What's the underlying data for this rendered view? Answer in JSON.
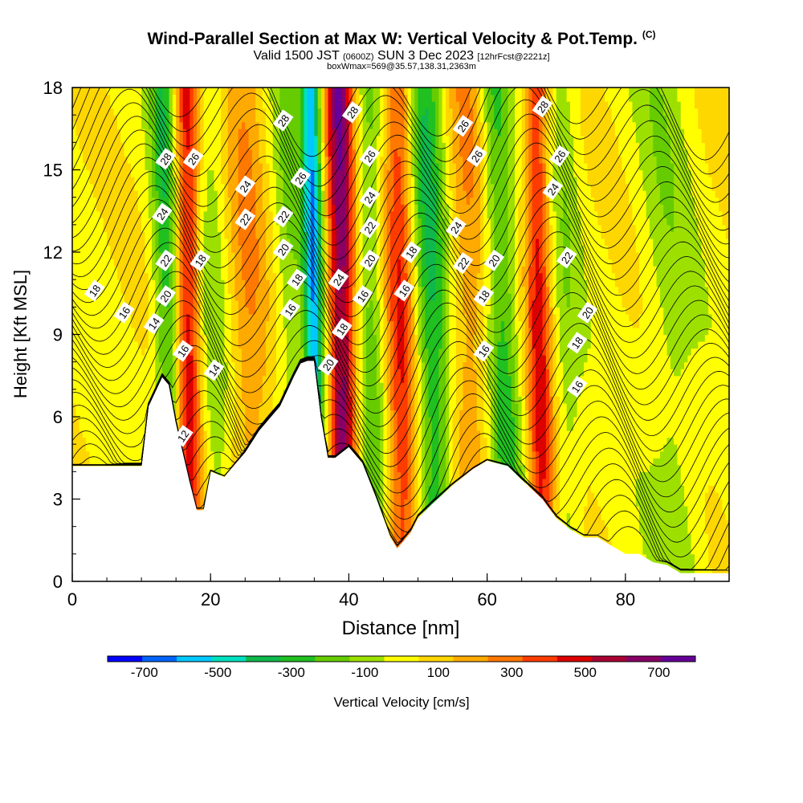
{
  "header": {
    "title": "Wind-Parallel Section at Max W: Vertical Velocity & Pot.Temp.",
    "copyright": "(C)",
    "valid_prefix": "Valid 1500 JST",
    "valid_zulu": "(0600Z)",
    "valid_date": "SUN 3 Dec 2023",
    "forecast_info": "[12hrFcst@2221z]",
    "box_info": "boxWmax=569@35.57,138.31,2363m"
  },
  "colors": {
    "terrain": "#ffffff",
    "contour": "#000000",
    "frame": "#000000"
  },
  "chart_data": {
    "type": "cross-section contour",
    "xlabel": "Distance [nm]",
    "ylabel": "Height [Kft MSL]",
    "xlim": [
      0,
      95
    ],
    "ylim": [
      0,
      18
    ],
    "xticks": [
      0,
      20,
      40,
      60,
      80
    ],
    "yticks": [
      0,
      3,
      6,
      9,
      12,
      15,
      18
    ],
    "colorbar": {
      "label": "Vertical Velocity [cm/s]",
      "tick_labels": [
        "-700",
        "-500",
        "-300",
        "-100",
        "100",
        "300",
        "500",
        "700"
      ],
      "tick_values": [
        -700,
        -500,
        -300,
        -100,
        100,
        300,
        500,
        700
      ],
      "colors": [
        "#0000ff",
        "#0064ff",
        "#00c8ff",
        "#00e0c0",
        "#10b84c",
        "#20c020",
        "#66cc00",
        "#9de000",
        "#ffff00",
        "#ffd700",
        "#ffaa00",
        "#ff7800",
        "#ff3c00",
        "#dd0000",
        "#aa0033",
        "#880066",
        "#660099"
      ],
      "bounds": [
        -800,
        800
      ]
    },
    "terrain_profile": {
      "x": [
        0,
        10,
        11,
        13,
        14,
        15,
        16,
        17,
        18,
        19,
        20,
        22,
        25,
        27,
        30,
        32,
        33,
        34,
        35,
        36,
        37,
        38,
        40,
        42,
        44,
        45,
        46,
        47,
        48,
        49,
        50,
        52,
        55,
        58,
        60,
        63,
        65,
        68,
        70,
        72,
        74,
        76,
        78,
        80,
        82,
        84,
        86,
        88,
        95
      ],
      "y": [
        4.2,
        4.2,
        6.4,
        7.5,
        7.2,
        5.8,
        4.7,
        3.6,
        2.6,
        2.6,
        4.0,
        3.8,
        4.7,
        5.5,
        6.4,
        7.5,
        8.0,
        8.1,
        8.1,
        6.0,
        4.5,
        4.5,
        4.9,
        4.3,
        3.0,
        2.3,
        1.6,
        1.2,
        1.5,
        1.8,
        2.3,
        2.8,
        3.5,
        4.1,
        4.4,
        4.2,
        3.7,
        3.0,
        2.3,
        1.9,
        1.6,
        1.6,
        1.3,
        1.0,
        1.0,
        0.7,
        0.6,
        0.3,
        0.3
      ]
    },
    "vertical_velocity_features": [
      {
        "x": 14.5,
        "x_top": 13.0,
        "w": -320,
        "width": 1.8
      },
      {
        "x": 17.0,
        "x_top": 16.5,
        "w": 450,
        "width": 1.8
      },
      {
        "x": 21.0,
        "x_top": 20.0,
        "w": -120,
        "width": 2.2
      },
      {
        "x": 26.0,
        "x_top": 25.0,
        "w": 200,
        "width": 3.0
      },
      {
        "x": 32.0,
        "x_top": 31.0,
        "w": -150,
        "width": 2.2
      },
      {
        "x": 35.5,
        "x_top": 34.5,
        "w": -600,
        "width": 1.4
      },
      {
        "x": 39.5,
        "x_top": 38.5,
        "w": 650,
        "width": 2.0
      },
      {
        "x": 43.5,
        "x_top": 43.0,
        "w": -200,
        "width": 2.0
      },
      {
        "x": 48.0,
        "x_top": 47.0,
        "w": 380,
        "width": 2.2
      },
      {
        "x": 53.0,
        "x_top": 51.0,
        "w": -350,
        "width": 2.5
      },
      {
        "x": 58.0,
        "x_top": 57.0,
        "w": 200,
        "width": 3.0
      },
      {
        "x": 63.5,
        "x_top": 61.0,
        "w": -300,
        "width": 2.2
      },
      {
        "x": 68.0,
        "x_top": 67.0,
        "w": 420,
        "width": 1.8
      },
      {
        "x": 72.0,
        "x_top": 71.0,
        "w": -120,
        "width": 2.0
      },
      {
        "x": 88.0,
        "x_top": 85.0,
        "w": -120,
        "width": 3.5
      }
    ],
    "theta_contour_labels": [
      {
        "text": "18",
        "x": 3.2,
        "y": 10.6
      },
      {
        "text": "16",
        "x": 7.5,
        "y": 9.8
      },
      {
        "text": "14",
        "x": 11.8,
        "y": 9.4
      },
      {
        "text": "12",
        "x": 16.0,
        "y": 5.3
      },
      {
        "text": "16",
        "x": 16.0,
        "y": 8.4
      },
      {
        "text": "20",
        "x": 13.5,
        "y": 10.4
      },
      {
        "text": "22",
        "x": 13.5,
        "y": 11.7
      },
      {
        "text": "24",
        "x": 13.0,
        "y": 13.4
      },
      {
        "text": "28",
        "x": 13.5,
        "y": 15.4
      },
      {
        "text": "26",
        "x": 17.5,
        "y": 15.4
      },
      {
        "text": "18",
        "x": 18.5,
        "y": 11.7
      },
      {
        "text": "14",
        "x": 20.5,
        "y": 7.7
      },
      {
        "text": "24",
        "x": 25.0,
        "y": 14.4
      },
      {
        "text": "22",
        "x": 25.0,
        "y": 13.2
      },
      {
        "text": "28",
        "x": 30.5,
        "y": 16.8
      },
      {
        "text": "22",
        "x": 30.5,
        "y": 13.3
      },
      {
        "text": "20",
        "x": 30.5,
        "y": 12.1
      },
      {
        "text": "18",
        "x": 32.5,
        "y": 11.0
      },
      {
        "text": "16",
        "x": 31.5,
        "y": 9.9
      },
      {
        "text": "26",
        "x": 33.0,
        "y": 14.7
      },
      {
        "text": "20",
        "x": 37.0,
        "y": 7.9
      },
      {
        "text": "18",
        "x": 39.0,
        "y": 9.2
      },
      {
        "text": "24",
        "x": 38.5,
        "y": 11.0
      },
      {
        "text": "28",
        "x": 40.5,
        "y": 17.1
      },
      {
        "text": "26",
        "x": 43.0,
        "y": 15.5
      },
      {
        "text": "24",
        "x": 43.0,
        "y": 14.0
      },
      {
        "text": "22",
        "x": 43.0,
        "y": 12.9
      },
      {
        "text": "20",
        "x": 43.0,
        "y": 11.7
      },
      {
        "text": "16",
        "x": 42.0,
        "y": 10.4
      },
      {
        "text": "18",
        "x": 49.0,
        "y": 12.0
      },
      {
        "text": "16",
        "x": 48.0,
        "y": 10.6
      },
      {
        "text": "26",
        "x": 56.5,
        "y": 16.6
      },
      {
        "text": "26",
        "x": 58.5,
        "y": 15.5
      },
      {
        "text": "24",
        "x": 55.5,
        "y": 12.9
      },
      {
        "text": "22",
        "x": 56.5,
        "y": 11.6
      },
      {
        "text": "20",
        "x": 61.0,
        "y": 11.7
      },
      {
        "text": "18",
        "x": 59.5,
        "y": 10.4
      },
      {
        "text": "16",
        "x": 59.5,
        "y": 8.4
      },
      {
        "text": "28",
        "x": 68.0,
        "y": 17.3
      },
      {
        "text": "26",
        "x": 70.5,
        "y": 15.5
      },
      {
        "text": "24",
        "x": 69.5,
        "y": 14.3
      },
      {
        "text": "22",
        "x": 71.5,
        "y": 11.8
      },
      {
        "text": "20",
        "x": 74.5,
        "y": 9.8
      },
      {
        "text": "18",
        "x": 73.0,
        "y": 8.7
      },
      {
        "text": "16",
        "x": 73.0,
        "y": 7.1
      }
    ]
  }
}
